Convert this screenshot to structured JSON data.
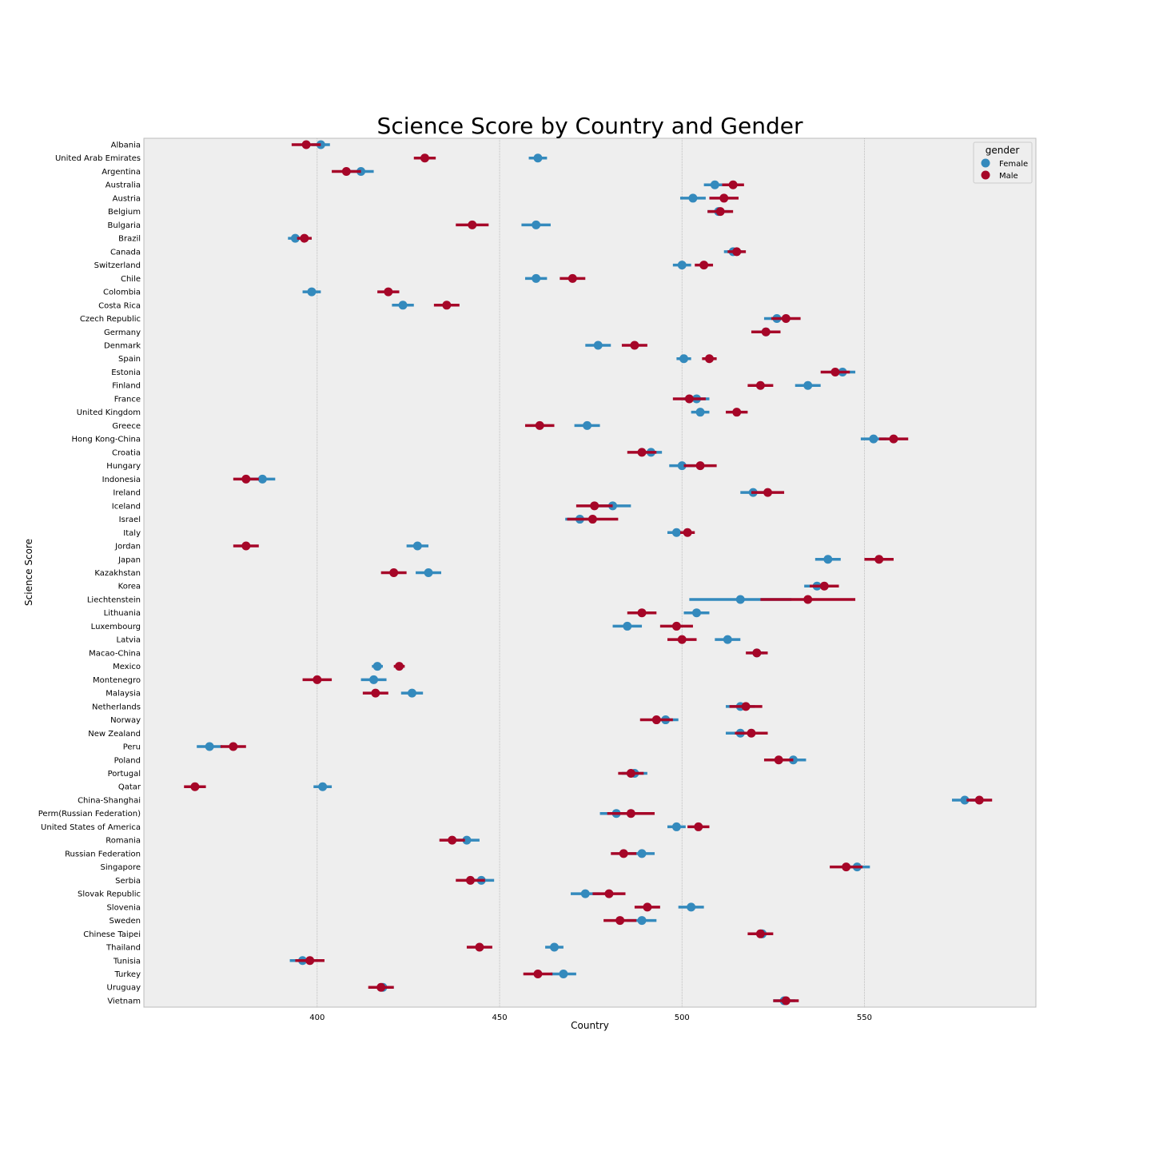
{
  "chart_data": {
    "type": "scatter",
    "title": "Science Score by Country and Gender",
    "xlabel": "Country",
    "ylabel": "Science Score",
    "xlim": [
      352.5,
      597
    ],
    "xticks": [
      400,
      450,
      500,
      550
    ],
    "grid": true,
    "legend": {
      "title": "gender",
      "placement": "top-right",
      "entries": [
        {
          "name": "Female",
          "color": "#348ABD"
        },
        {
          "name": "Male",
          "color": "#A60628"
        }
      ]
    },
    "categories": [
      "Albania",
      "United Arab Emirates",
      "Argentina",
      "Australia",
      "Austria",
      "Belgium",
      "Bulgaria",
      "Brazil",
      "Canada",
      "Switzerland",
      "Chile",
      "Colombia",
      "Costa Rica",
      "Czech Republic",
      "Germany",
      "Denmark",
      "Spain",
      "Estonia",
      "Finland",
      "France",
      "United Kingdom",
      "Greece",
      "Hong Kong-China",
      "Croatia",
      "Hungary",
      "Indonesia",
      "Ireland",
      "Iceland",
      "Israel",
      "Italy",
      "Jordan",
      "Japan",
      "Kazakhstan",
      "Korea",
      "Liechtenstein",
      "Lithuania",
      "Luxembourg",
      "Latvia",
      "Macao-China",
      "Mexico",
      "Montenegro",
      "Malaysia",
      "Netherlands",
      "Norway",
      "New Zealand",
      "Peru",
      "Poland",
      "Portugal",
      "Qatar",
      "China-Shanghai",
      "Perm(Russian Federation)",
      "United States of America",
      "Romania",
      "Russian Federation",
      "Singapore",
      "Serbia",
      "Slovak Republic",
      "Slovenia",
      "Sweden",
      "Chinese Taipei",
      "Thailand",
      "Tunisia",
      "Turkey",
      "Uruguay",
      "Vietnam"
    ],
    "series": [
      {
        "name": "Female",
        "color": "#348ABD",
        "values": [
          401,
          460.5,
          412,
          509,
          503,
          510,
          460,
          394,
          514,
          500,
          460,
          398.5,
          423.5,
          526,
          523,
          477,
          500.5,
          544,
          534.5,
          504,
          505,
          474,
          552.5,
          491.5,
          500,
          385,
          519.5,
          481,
          472,
          498.5,
          427.5,
          540,
          430.5,
          537,
          516,
          504,
          485,
          512.5,
          520.5,
          416.5,
          415.5,
          426,
          516,
          495.5,
          516,
          370.5,
          530.5,
          487,
          401.5,
          577.5,
          482,
          498.5,
          441,
          489,
          548,
          445,
          473.5,
          502.5,
          489,
          522,
          465,
          396,
          467.5,
          418,
          528
        ],
        "err": [
          2.5,
          2.5,
          3.5,
          3,
          3.5,
          3,
          4,
          2,
          2.5,
          2.5,
          3,
          2.5,
          3,
          3.5,
          3.5,
          3.5,
          2,
          3.5,
          3.5,
          3.5,
          2.5,
          3.5,
          3.5,
          3,
          3.5,
          3.5,
          3.5,
          5,
          4,
          2.5,
          3,
          3.5,
          3.5,
          3.5,
          14,
          3.5,
          4,
          3.5,
          2,
          1.5,
          3.5,
          3,
          4,
          3.5,
          4,
          3.5,
          3.5,
          3.5,
          2.5,
          3.5,
          4.5,
          2.5,
          3.5,
          3.5,
          3.5,
          3.5,
          4,
          3.5,
          4,
          2.5,
          2.5,
          3.5,
          3.5,
          3,
          3
        ]
      },
      {
        "name": "Male",
        "color": "#A60628",
        "values": [
          397,
          429.5,
          408,
          514,
          511.5,
          510.5,
          442.5,
          396.5,
          515,
          506,
          470,
          419.5,
          435.5,
          528.5,
          523,
          487,
          507.5,
          542,
          521.5,
          502,
          515,
          461,
          558,
          489,
          505,
          380.5,
          523.5,
          476,
          475.5,
          501.5,
          380.5,
          554,
          421,
          539,
          534.5,
          489,
          498.5,
          500,
          520.5,
          422.5,
          400,
          416,
          517.5,
          493,
          519,
          377,
          526.5,
          486,
          366.5,
          581.5,
          486,
          504.5,
          437,
          484,
          545,
          442,
          480,
          490.5,
          483,
          521.5,
          444.5,
          398,
          460.5,
          417.5,
          528.5
        ],
        "err": [
          4,
          3,
          4,
          3,
          4,
          3.5,
          4.5,
          2,
          2.5,
          2.5,
          3.5,
          3,
          3.5,
          4,
          4,
          3.5,
          2,
          4,
          3.5,
          4.5,
          3,
          4,
          4,
          4,
          4.5,
          3.5,
          4.5,
          5,
          7,
          2,
          3.5,
          4,
          3.5,
          4,
          13,
          4,
          4.5,
          4,
          3,
          1.5,
          4,
          3.5,
          4.5,
          4.5,
          4.5,
          3.5,
          4,
          3.5,
          3,
          3.5,
          6.5,
          3,
          3.5,
          3.5,
          4.5,
          4,
          4.5,
          3.5,
          4.5,
          3.5,
          3.5,
          4,
          4,
          3.5,
          3.5
        ]
      }
    ]
  }
}
